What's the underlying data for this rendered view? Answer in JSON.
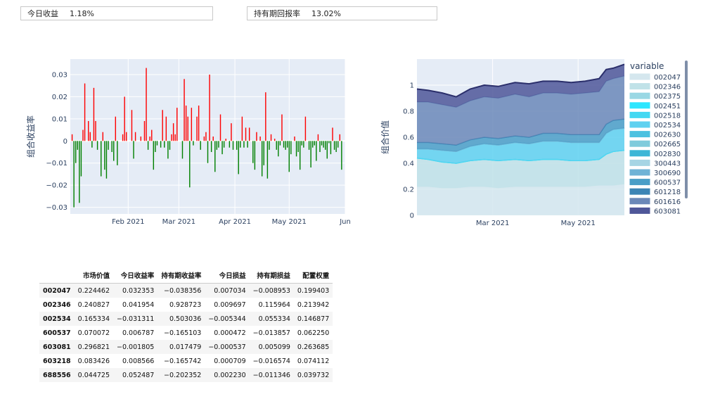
{
  "metrics": {
    "today_label": "今日收益",
    "today_value": "1.18%",
    "hold_label": "持有期回报率",
    "hold_value": "13.02%"
  },
  "chart_data": [
    {
      "type": "bar",
      "ylabel": "组合收益率",
      "xlabel": "",
      "ylim": [
        -0.033,
        0.037
      ],
      "yticks": [
        -0.03,
        -0.02,
        -0.01,
        0,
        0.01,
        0.02,
        0.03
      ],
      "ytick_labels": [
        "−0.03",
        "−0.02",
        "−0.01",
        "0",
        "0.01",
        "0.02",
        "0.03"
      ],
      "xticks": [
        {
          "label": "Feb 2021",
          "day": 31
        },
        {
          "label": "Mar 2021",
          "day": 59
        },
        {
          "label": "Apr 2021",
          "day": 90
        },
        {
          "label": "May 2021",
          "day": 120
        },
        {
          "label": "Jun",
          "day": 151
        }
      ],
      "x_range_days": [
        -1,
        151
      ],
      "x_start_date": "2021-01-01",
      "positive_color": "#ff0000",
      "negative_color": "#008000",
      "values": [
        [
          0,
          0.003
        ],
        [
          1,
          -0.03
        ],
        [
          2,
          -0.01
        ],
        [
          3,
          -0.004
        ],
        [
          4,
          -0.028
        ],
        [
          5,
          -0.016
        ],
        [
          6,
          0.005
        ],
        [
          7,
          0.026
        ],
        [
          9,
          0.009
        ],
        [
          10,
          0.004
        ],
        [
          11,
          -0.003
        ],
        [
          12,
          0.024
        ],
        [
          13,
          0.009
        ],
        [
          14,
          -0.004
        ],
        [
          16,
          -0.016
        ],
        [
          17,
          0.004
        ],
        [
          18,
          -0.013
        ],
        [
          19,
          -0.017
        ],
        [
          20,
          -0.004
        ],
        [
          22,
          -0.005
        ],
        [
          23,
          -0.009
        ],
        [
          24,
          0.011
        ],
        [
          25,
          -0.011
        ],
        [
          28,
          0.003
        ],
        [
          29,
          0.02
        ],
        [
          30,
          0.004
        ],
        [
          33,
          0.014
        ],
        [
          34,
          -0.008
        ],
        [
          35,
          0.004
        ],
        [
          38,
          0.002
        ],
        [
          40,
          0.009
        ],
        [
          41,
          0.033
        ],
        [
          42,
          -0.004
        ],
        [
          43,
          0.002
        ],
        [
          44,
          0.005
        ],
        [
          45,
          -0.013
        ],
        [
          46,
          -0.005
        ],
        [
          47,
          -0.002
        ],
        [
          49,
          -0.003
        ],
        [
          50,
          0.014
        ],
        [
          51,
          -0.003
        ],
        [
          52,
          0.011
        ],
        [
          53,
          -0.008
        ],
        [
          54,
          -0.004
        ],
        [
          55,
          0.003
        ],
        [
          56,
          0.008
        ],
        [
          57,
          0.003
        ],
        [
          58,
          0.015
        ],
        [
          61,
          -0.008
        ],
        [
          62,
          0.028
        ],
        [
          63,
          0.016
        ],
        [
          64,
          0.011
        ],
        [
          65,
          -0.021
        ],
        [
          66,
          0.015
        ],
        [
          67,
          -0.002
        ],
        [
          69,
          0.011
        ],
        [
          70,
          0.016
        ],
        [
          71,
          -0.004
        ],
        [
          73,
          0.002
        ],
        [
          74,
          0.004
        ],
        [
          75,
          -0.01
        ],
        [
          76,
          0.03
        ],
        [
          77,
          -0.005
        ],
        [
          78,
          0.002
        ],
        [
          79,
          -0.014
        ],
        [
          80,
          -0.004
        ],
        [
          81,
          -0.003
        ],
        [
          82,
          0.012
        ],
        [
          83,
          -0.006
        ],
        [
          84,
          -0.003
        ],
        [
          85,
          0.001
        ],
        [
          87,
          -0.003
        ],
        [
          88,
          0.008
        ],
        [
          89,
          -0.004
        ],
        [
          91,
          -0.004
        ],
        [
          92,
          -0.015
        ],
        [
          93,
          -0.003
        ],
        [
          94,
          0.011
        ],
        [
          95,
          -0.003
        ],
        [
          96,
          0.006
        ],
        [
          97,
          -0.003
        ],
        [
          98,
          0.006
        ],
        [
          100,
          -0.01
        ],
        [
          101,
          -0.013
        ],
        [
          102,
          0.004
        ],
        [
          104,
          0.002
        ],
        [
          105,
          -0.016
        ],
        [
          106,
          -0.011
        ],
        [
          107,
          0.022
        ],
        [
          108,
          -0.017
        ],
        [
          109,
          -0.004
        ],
        [
          110,
          0.003
        ],
        [
          112,
          0.001
        ],
        [
          113,
          -0.004
        ],
        [
          114,
          -0.007
        ],
        [
          115,
          -0.002
        ],
        [
          116,
          0.012
        ],
        [
          117,
          -0.003
        ],
        [
          118,
          -0.004
        ],
        [
          119,
          -0.003
        ],
        [
          120,
          -0.014
        ],
        [
          121,
          -0.006
        ],
        [
          123,
          0.002
        ],
        [
          124,
          -0.007
        ],
        [
          125,
          -0.005
        ],
        [
          126,
          -0.013
        ],
        [
          127,
          -0.002
        ],
        [
          128,
          -0.003
        ],
        [
          129,
          0.011
        ],
        [
          131,
          -0.004
        ],
        [
          132,
          -0.012
        ],
        [
          133,
          -0.003
        ],
        [
          134,
          -0.002
        ],
        [
          135,
          -0.009
        ],
        [
          136,
          0.003
        ],
        [
          137,
          -0.005
        ],
        [
          138,
          -0.002
        ],
        [
          139,
          -0.003
        ],
        [
          140,
          -0.004
        ],
        [
          141,
          -0.008
        ],
        [
          142,
          -0.001
        ],
        [
          143,
          -0.006
        ],
        [
          144,
          0.006
        ],
        [
          145,
          -0.004
        ],
        [
          146,
          -0.005
        ],
        [
          147,
          -0.003
        ],
        [
          148,
          0.003
        ],
        [
          149,
          -0.013
        ]
      ]
    },
    {
      "type": "area",
      "ylabel": "组合价值",
      "xlabel": "",
      "ylim": [
        0,
        1.2
      ],
      "yticks": [
        0,
        0.2,
        0.4,
        0.6,
        0.8,
        1
      ],
      "ytick_labels": [
        "0",
        "0.2",
        "0.4",
        "0.6",
        "0.8",
        "1"
      ],
      "x_start_date": "2021-01-06",
      "x_range_days": [
        0,
        148
      ],
      "xticks": [
        {
          "label": "Mar 2021",
          "day": 54
        },
        {
          "label": "May 2021",
          "day": 115
        }
      ],
      "x": [
        0,
        8,
        18,
        28,
        38,
        48,
        58,
        70,
        80,
        90,
        100,
        110,
        120,
        130,
        135,
        140,
        148
      ],
      "legend_title": "variable",
      "legend_position": "right",
      "series": [
        {
          "name": "002047",
          "color": "#d5e7ee",
          "values": [
            0.22,
            0.22,
            0.21,
            0.21,
            0.22,
            0.22,
            0.21,
            0.22,
            0.22,
            0.22,
            0.22,
            0.22,
            0.22,
            0.23,
            0.23,
            0.23,
            0.24
          ]
        },
        {
          "name": "002346",
          "color": "#c0e2e8",
          "values": [
            0.22,
            0.21,
            0.2,
            0.19,
            0.2,
            0.21,
            0.21,
            0.21,
            0.2,
            0.21,
            0.21,
            0.2,
            0.2,
            0.2,
            0.24,
            0.26,
            0.26
          ]
        },
        {
          "name": "002375",
          "color": "#9ad8e4",
          "values": [
            0,
            0,
            0,
            0,
            0,
            0,
            0,
            0,
            0,
            0,
            0,
            0,
            0,
            0,
            0,
            0,
            0
          ]
        },
        {
          "name": "002451",
          "color": "#2ee6ff",
          "values": [
            0,
            0,
            0,
            0,
            0,
            0,
            0,
            0,
            0,
            0,
            0,
            0,
            0,
            0,
            0,
            0,
            0
          ]
        },
        {
          "name": "002518",
          "color": "#44d8f2",
          "values": [
            0,
            0,
            0,
            0,
            0,
            0,
            0,
            0,
            0,
            0,
            0,
            0,
            0,
            0,
            0,
            0,
            0
          ]
        },
        {
          "name": "002534",
          "color": "#5fd1f0",
          "values": [
            0.07,
            0.08,
            0.09,
            0.09,
            0.11,
            0.12,
            0.12,
            0.13,
            0.13,
            0.14,
            0.14,
            0.14,
            0.14,
            0.13,
            0.16,
            0.17,
            0.17
          ]
        },
        {
          "name": "002630",
          "color": "#4cc1e0",
          "values": [
            0,
            0,
            0,
            0,
            0,
            0,
            0,
            0,
            0,
            0,
            0,
            0,
            0,
            0,
            0,
            0,
            0
          ]
        },
        {
          "name": "002665",
          "color": "#7fcbdc",
          "values": [
            0,
            0,
            0,
            0,
            0,
            0,
            0,
            0,
            0,
            0,
            0,
            0,
            0,
            0,
            0,
            0,
            0
          ]
        },
        {
          "name": "002830",
          "color": "#3db6d6",
          "values": [
            0,
            0,
            0,
            0,
            0,
            0,
            0,
            0,
            0,
            0,
            0,
            0,
            0,
            0,
            0,
            0,
            0
          ]
        },
        {
          "name": "300443",
          "color": "#a6d5e4",
          "values": [
            0,
            0,
            0,
            0,
            0,
            0,
            0,
            0,
            0,
            0,
            0,
            0,
            0,
            0,
            0,
            0,
            0
          ]
        },
        {
          "name": "300690",
          "color": "#6fb3d6",
          "values": [
            0,
            0,
            0,
            0,
            0,
            0,
            0,
            0,
            0,
            0,
            0,
            0,
            0,
            0,
            0,
            0,
            0
          ]
        },
        {
          "name": "600537",
          "color": "#4a9ec7",
          "values": [
            0.05,
            0.05,
            0.05,
            0.05,
            0.05,
            0.05,
            0.05,
            0.05,
            0.05,
            0.06,
            0.06,
            0.06,
            0.06,
            0.06,
            0.07,
            0.07,
            0.07
          ]
        },
        {
          "name": "601218",
          "color": "#3d85b5",
          "values": [
            0,
            0,
            0,
            0,
            0,
            0,
            0,
            0,
            0,
            0,
            0,
            0,
            0,
            0,
            0,
            0,
            0
          ]
        },
        {
          "name": "601616",
          "color": "#6b88b8",
          "values": [
            0.31,
            0.31,
            0.3,
            0.29,
            0.3,
            0.31,
            0.31,
            0.32,
            0.31,
            0.31,
            0.31,
            0.31,
            0.32,
            0.33,
            0.33,
            0.32,
            0.33
          ]
        },
        {
          "name": "603081",
          "color": "#4f5799",
          "values": [
            0.1,
            0.09,
            0.09,
            0.08,
            0.09,
            0.09,
            0.09,
            0.09,
            0.1,
            0.09,
            0.09,
            0.09,
            0.09,
            0.1,
            0.09,
            0.08,
            0.09
          ]
        }
      ]
    }
  ],
  "table": {
    "columns": [
      "",
      "市场价值",
      "今日收益率",
      "持有期收益率",
      "今日损益",
      "持有期损益",
      "配置权重"
    ],
    "rows": [
      [
        "002047",
        "0.224462",
        "0.032353",
        "−0.038356",
        "0.007034",
        "−0.008953",
        "0.199403"
      ],
      [
        "002346",
        "0.240827",
        "0.041954",
        "0.928723",
        "0.009697",
        "0.115964",
        "0.213942"
      ],
      [
        "002534",
        "0.165334",
        "−0.031311",
        "0.503036",
        "−0.005344",
        "0.055334",
        "0.146877"
      ],
      [
        "600537",
        "0.070072",
        "0.006787",
        "−0.165103",
        "0.000472",
        "−0.013857",
        "0.062250"
      ],
      [
        "603081",
        "0.296821",
        "−0.001805",
        "0.017479",
        "−0.000537",
        "0.005099",
        "0.263685"
      ],
      [
        "603218",
        "0.083426",
        "0.008566",
        "−0.165742",
        "0.000709",
        "−0.016574",
        "0.074112"
      ],
      [
        "688556",
        "0.044725",
        "0.052487",
        "−0.202352",
        "0.002230",
        "−0.011346",
        "0.039732"
      ]
    ]
  }
}
